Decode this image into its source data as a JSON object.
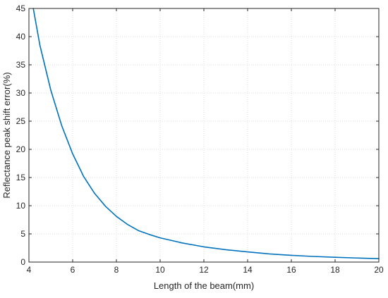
{
  "chart_data": {
    "type": "line",
    "title": "",
    "xlabel": "Length of the beam(mm)",
    "ylabel": "Reflectance peak shift error(%)",
    "xlim": [
      4,
      20
    ],
    "ylim": [
      0,
      45
    ],
    "xticks": [
      4,
      6,
      8,
      10,
      12,
      14,
      16,
      18,
      20
    ],
    "yticks": [
      0,
      5,
      10,
      15,
      20,
      25,
      30,
      35,
      40,
      45
    ],
    "grid": true,
    "legend": "none",
    "series": [
      {
        "color": "#0072BD",
        "x": [
          4.2,
          4.5,
          5,
          5.5,
          6,
          6.5,
          7,
          7.5,
          8,
          8.5,
          9,
          9.5,
          10,
          11,
          12,
          13,
          14,
          15,
          16,
          17,
          18,
          19,
          20
        ],
        "y": [
          45.0,
          38.5,
          30.5,
          24.2,
          19.2,
          15.2,
          12.2,
          9.9,
          8.1,
          6.7,
          5.6,
          4.9,
          4.3,
          3.4,
          2.7,
          2.2,
          1.8,
          1.45,
          1.2,
          1.0,
          0.85,
          0.72,
          0.6
        ]
      }
    ]
  },
  "colors": {
    "axis": "#262626",
    "grid": "#dcdcdc",
    "background": "#ffffff"
  }
}
